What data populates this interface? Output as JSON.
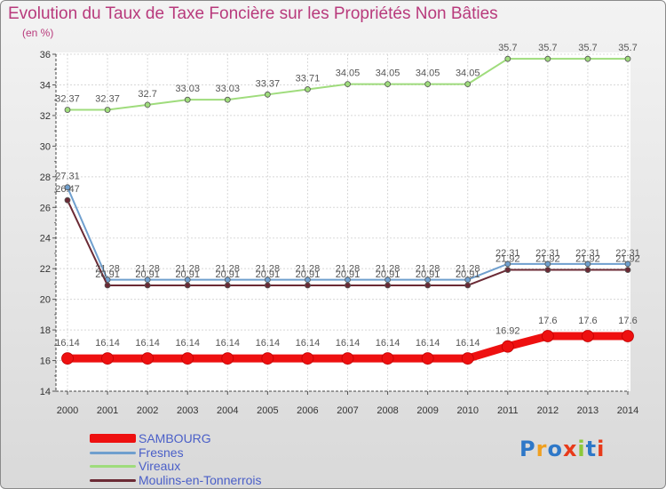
{
  "chart_data": {
    "type": "line",
    "title": "Evolution du Taux de Taxe Foncière sur les Propriétés Non Bâties",
    "ylabel": "(en %)",
    "xlabel": "",
    "ylim": [
      14,
      36
    ],
    "yticks": [
      14,
      16,
      18,
      20,
      22,
      24,
      26,
      28,
      30,
      32,
      34,
      36
    ],
    "categories": [
      "2000",
      "2001",
      "2002",
      "2003",
      "2004",
      "2005",
      "2006",
      "2007",
      "2008",
      "2009",
      "2010",
      "2011",
      "2012",
      "2013",
      "2014"
    ],
    "series": [
      {
        "name": "SAMBOURG",
        "color": "#ee1010",
        "values": [
          16.14,
          16.14,
          16.14,
          16.14,
          16.14,
          16.14,
          16.14,
          16.14,
          16.14,
          16.14,
          16.14,
          16.92,
          17.6,
          17.6,
          17.6
        ],
        "labels": [
          "16.14",
          "16.14",
          "16.14",
          "16.14",
          "16.14",
          "16.14",
          "16.14",
          "16.14",
          "16.14",
          "16.14",
          "16.14",
          "16.92",
          "17.6",
          "17.6",
          "17.6"
        ]
      },
      {
        "name": "Fresnes",
        "color": "#6f9fce",
        "values": [
          27.31,
          21.28,
          21.28,
          21.28,
          21.28,
          21.28,
          21.28,
          21.28,
          21.28,
          21.28,
          21.28,
          22.31,
          22.31,
          22.31,
          22.31
        ],
        "labels": [
          "27.31",
          "21.28",
          "21.28",
          "21.28",
          "21.28",
          "21.28",
          "21.28",
          "21.28",
          "21.28",
          "21.28",
          "21.28",
          "22.31",
          "22.31",
          "22.31",
          "22.31"
        ]
      },
      {
        "name": "Vireaux",
        "color": "#9fdc7c",
        "values": [
          32.37,
          32.37,
          32.7,
          33.03,
          33.03,
          33.37,
          33.71,
          34.05,
          34.05,
          34.05,
          34.05,
          35.7,
          35.7,
          35.7,
          35.7
        ],
        "labels": [
          "32.37",
          "32.37",
          "32.7",
          "33.03",
          "33.03",
          "33.37",
          "33.71",
          "34.05",
          "34.05",
          "34.05",
          "34.05",
          "35.7",
          "35.7",
          "35.7",
          "35.7"
        ]
      },
      {
        "name": "Moulins-en-Tonnerrois",
        "color": "#6b2a35",
        "values": [
          26.47,
          20.91,
          20.91,
          20.91,
          20.91,
          20.91,
          20.91,
          20.91,
          20.91,
          20.91,
          20.91,
          21.92,
          21.92,
          21.92,
          21.92
        ],
        "labels": [
          "26.47",
          "20.91",
          "20.91",
          "20.91",
          "20.91",
          "20.91",
          "20.91",
          "20.91",
          "20.91",
          "20.91",
          "20.91",
          "21.92",
          "21.92",
          "21.92",
          "21.92"
        ]
      }
    ]
  },
  "logo": {
    "text": "Proxiti",
    "colors": [
      "#2e78c8",
      "#f0a020",
      "#2e78c8",
      "#e83a1a",
      "#8cc83a",
      "#2e78c8",
      "#e83a1a"
    ]
  }
}
